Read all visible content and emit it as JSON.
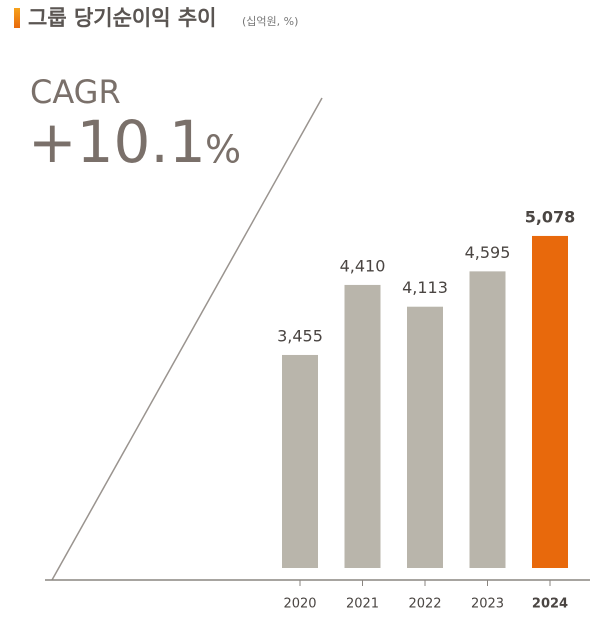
{
  "chart_data": {
    "type": "bar",
    "title": "그룹 당기순이익 추이",
    "subtitle": "(십억원, %)",
    "annotations": {
      "cagr_label": "CAGR",
      "cagr_value": "+10.1",
      "cagr_unit": "%"
    },
    "categories": [
      "2020",
      "2021",
      "2022",
      "2023",
      "2024"
    ],
    "values": [
      3455,
      4410,
      4113,
      4595,
      5078
    ],
    "value_labels": [
      "3,455",
      "4,410",
      "4,113",
      "4,595",
      "5,078"
    ],
    "colors": [
      "#b9b5ab",
      "#b9b5ab",
      "#b9b5ab",
      "#b9b5ab",
      "#e8690c"
    ],
    "ylim": [
      550,
      5500
    ]
  }
}
